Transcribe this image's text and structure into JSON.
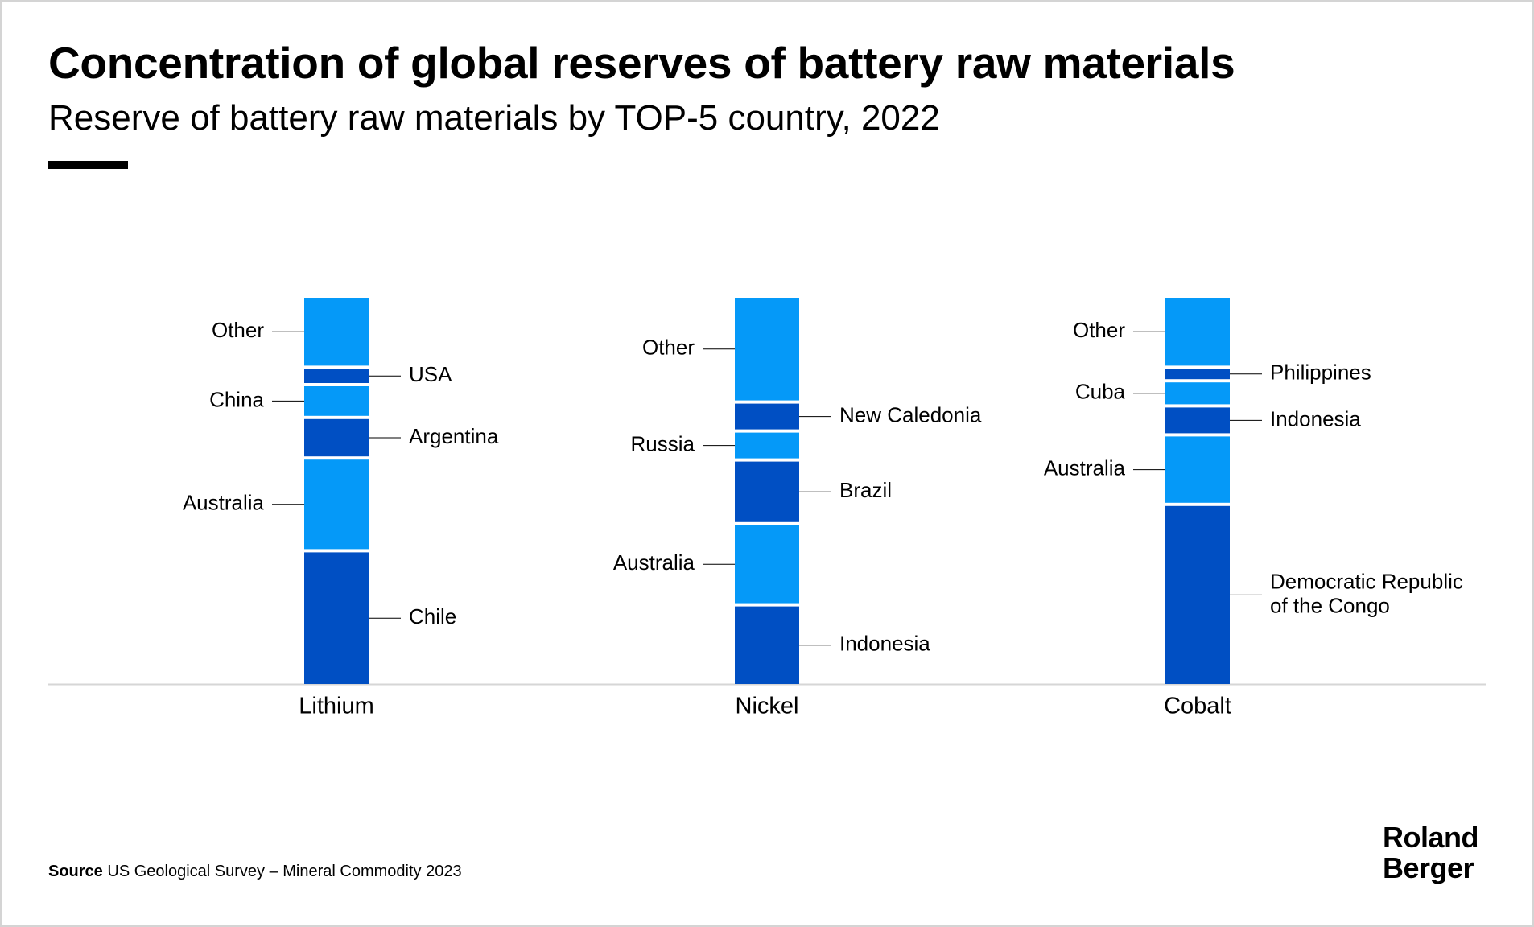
{
  "title": "Concentration of global reserves of battery raw materials",
  "subtitle": "Reserve of battery raw materials by TOP-5 country, 2022",
  "source": {
    "label": "Source",
    "text": "US Geological Survey – Mineral Commodity 2023"
  },
  "logo": {
    "line1": "Roland",
    "line2": "Berger"
  },
  "colors": {
    "light": "#0599f8",
    "dark": "#004fc3",
    "baseline": "#d6d6d6",
    "leader": "#000000"
  },
  "chart_data": {
    "type": "bar",
    "stacked": true,
    "normalized_to": 100,
    "unit": "% share of global reserves (estimated from figure)",
    "categories": [
      "Lithium",
      "Nickel",
      "Cobalt"
    ],
    "bars": [
      {
        "category": "Lithium",
        "segments": [
          {
            "name": "Chile",
            "value": 34.5,
            "shade": "dark",
            "side": "right"
          },
          {
            "name": "Australia",
            "value": 24,
            "shade": "light",
            "side": "left"
          },
          {
            "name": "Argentina",
            "value": 10.5,
            "shade": "dark",
            "side": "right"
          },
          {
            "name": "China",
            "value": 8.5,
            "shade": "light",
            "side": "left"
          },
          {
            "name": "USA",
            "value": 4.5,
            "shade": "dark",
            "side": "right"
          },
          {
            "name": "Other",
            "value": 18,
            "shade": "light",
            "side": "left"
          }
        ]
      },
      {
        "category": "Nickel",
        "segments": [
          {
            "name": "Indonesia",
            "value": 20.5,
            "shade": "dark",
            "side": "right"
          },
          {
            "name": "Australia",
            "value": 21,
            "shade": "light",
            "side": "left"
          },
          {
            "name": "Brazil",
            "value": 16.5,
            "shade": "dark",
            "side": "right"
          },
          {
            "name": "Russia",
            "value": 7.5,
            "shade": "light",
            "side": "left"
          },
          {
            "name": "New Caledonia",
            "value": 7.5,
            "shade": "dark",
            "side": "right"
          },
          {
            "name": "Other",
            "value": 27,
            "shade": "light",
            "side": "left"
          }
        ]
      },
      {
        "category": "Cobalt",
        "segments": [
          {
            "name": "Democratic Republic of the Congo",
            "lines": [
              "Democratic Republic",
              "of the Congo"
            ],
            "value": 46.5,
            "shade": "dark",
            "side": "right"
          },
          {
            "name": "Australia",
            "value": 18,
            "shade": "light",
            "side": "left"
          },
          {
            "name": "Indonesia",
            "value": 7.5,
            "shade": "dark",
            "side": "right"
          },
          {
            "name": "Cuba",
            "value": 6.5,
            "shade": "light",
            "side": "left"
          },
          {
            "name": "Philippines",
            "value": 3.5,
            "shade": "dark",
            "side": "right"
          },
          {
            "name": "Other",
            "value": 18,
            "shade": "light",
            "side": "left"
          }
        ]
      }
    ],
    "ylim": [
      0,
      100
    ],
    "legend": "none",
    "grid": false
  }
}
